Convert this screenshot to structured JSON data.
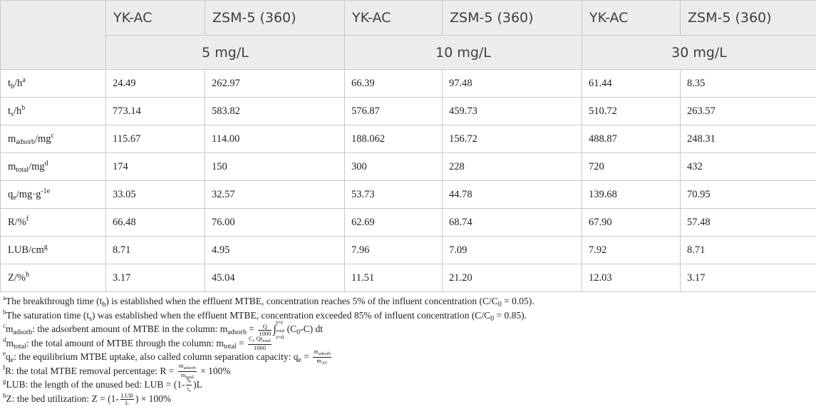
{
  "header": {
    "top": [
      "YK-AC",
      "ZSM-5 (360)",
      "YK-AC",
      "ZSM-5 (360)",
      "YK-AC",
      "ZSM-5 (360)"
    ],
    "groups": [
      "5 mg/L",
      "10 mg/L",
      "30 mg/L"
    ]
  },
  "rows": [
    {
      "label_main": "t",
      "label_sub": "b",
      "label_tail": "/h",
      "label_sup": "a",
      "values": [
        "24.49",
        "262.97",
        "66.39",
        "97.48",
        "61.44",
        "8.35"
      ]
    },
    {
      "label_main": "t",
      "label_sub": "s",
      "label_tail": "/h",
      "label_sup": "b",
      "values": [
        "773.14",
        "583.82",
        "576.87",
        "459.73",
        "510.72",
        "263.57"
      ]
    },
    {
      "label_main": "m",
      "label_sub": "adsorb",
      "label_tail": "/mg",
      "label_sup": "c",
      "values": [
        "115.67",
        "114.00",
        "188.062",
        "156.72",
        "488.87",
        "248.31"
      ]
    },
    {
      "label_main": "m",
      "label_sub": "total",
      "label_tail": "/mg",
      "label_sup": "d",
      "values": [
        "174",
        "150",
        "300",
        "228",
        "720",
        "432"
      ]
    },
    {
      "label_main": "q",
      "label_sub": "e",
      "label_tail": "/mg·g",
      "label_sup": "-1e",
      "values": [
        "33.05",
        "32.57",
        "53.73",
        "44.78",
        "139.68",
        "70.95"
      ]
    },
    {
      "label_main": "R/%",
      "label_sub": "",
      "label_tail": "",
      "label_sup": "f",
      "values": [
        "66.48",
        "76.00",
        "62.69",
        "68.74",
        "67.90",
        "57.48"
      ]
    },
    {
      "label_main": "LUB/cm",
      "label_sub": "",
      "label_tail": "",
      "label_sup": "g",
      "values": [
        "8.71",
        "4.95",
        "7.96",
        "7.09",
        "7.92",
        "8.71"
      ]
    },
    {
      "label_main": "Z/%",
      "label_sub": "",
      "label_tail": "",
      "label_sup": "h",
      "values": [
        "3.17",
        "45.04",
        "11.51",
        "21.20",
        "12.03",
        "3.17"
      ]
    }
  ],
  "notes": {
    "a": {
      "mark": "a",
      "t1": "The breakthrough time (t",
      "s1": "b",
      "t2": ") is established when the effluent MTBE, concentration reaches 5% of the influent concentration (C/C",
      "s2": "0",
      "t3": " = 0.05)."
    },
    "b": {
      "mark": "b",
      "t1": "The saturation time (t",
      "s1": "s",
      "t2": ") was established when the effluent MTBE, concentration exceeded 85% of influent concentration (C/C",
      "s2": "0",
      "t3": " = 0.85)."
    },
    "c": {
      "mark": "c",
      "m": "m",
      "msub": "adsorb",
      "t1": ": the adsorbent amount of MTBE in the column: m",
      "msub2": "adsorb",
      "eq": " = ",
      "frac_num": "Q",
      "frac_den": "1000",
      "int_top": "t=t",
      "int_top_sub": "total",
      "int_bot": "t=0",
      "t2": " (C",
      "s2": "0",
      "t3": "-C) dt"
    },
    "d": {
      "mark": "d",
      "m": "m",
      "msub": "total",
      "t1": ": the total amount of MTBE through the column: m",
      "msub2": "total",
      "eq": " = ",
      "frac_num": "C₀ Qt",
      "frac_num_sub": "total",
      "frac_den": "1000"
    },
    "e": {
      "mark": "e",
      "m": "q",
      "msub": "e",
      "t1": ": the equilibrium MTBE uptake, also called column separation capacity: q",
      "msub2": "e",
      "eq": " = ",
      "frac_num": "m",
      "frac_num_sub": "adsorb",
      "frac_den": "m",
      "frac_den_sub": "AC"
    },
    "f": {
      "mark": "f",
      "t1": "R: the total MTBE removal percentage: R = ",
      "frac_num": "m",
      "frac_num_sub": "adsorb",
      "frac_den": "m",
      "frac_den_sub": "total",
      "t2": " × 100%"
    },
    "g": {
      "mark": "g",
      "t1": "LUB: the length of the unused bed: LUB = (1-",
      "frac_num": "t",
      "frac_num_sub": "b",
      "frac_den": "t",
      "frac_den_sub": "s",
      "t2": ")L"
    },
    "h": {
      "mark": "h",
      "t1": "Z: the bed utilization: Z = (1-",
      "frac_num": "LUB",
      "frac_den": "L",
      "t2": ") × 100%"
    }
  }
}
